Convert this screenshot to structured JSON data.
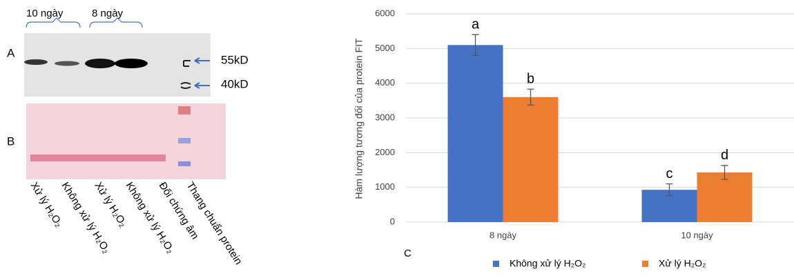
{
  "panels": {
    "a_label": "A",
    "b_label": "B",
    "c_label": "C",
    "groups": [
      "10 ngày",
      "8 ngày"
    ],
    "markers": [
      "55kD",
      "40kD"
    ],
    "lanes": [
      "Xử lý H₂O₂",
      "Không xử lý H₂O₂",
      "Xử lý H₂O₂",
      "Không xử lý H₂O₂",
      "Đối chứng âm",
      "Thang chuẩn protein"
    ]
  },
  "chart_data": {
    "type": "bar",
    "ylabel": "Hàm lượng tương đối của protein FIT",
    "categories": [
      "8 ngày",
      "10 ngày"
    ],
    "series": [
      {
        "name": "Không xử lý H₂O₂",
        "color": "#4472c4",
        "values": [
          5100,
          930
        ],
        "errors": [
          300,
          170
        ],
        "significance": [
          "a",
          "c"
        ]
      },
      {
        "name": "Xử lý H₂O₂",
        "color": "#ed7d31",
        "values": [
          3600,
          1430
        ],
        "errors": [
          230,
          200
        ],
        "significance": [
          "b",
          "d"
        ]
      }
    ],
    "ylim": [
      0,
      6000
    ],
    "yticks": [
      0,
      1000,
      2000,
      3000,
      4000,
      5000,
      6000
    ],
    "grid": true,
    "legend": "bottom"
  }
}
